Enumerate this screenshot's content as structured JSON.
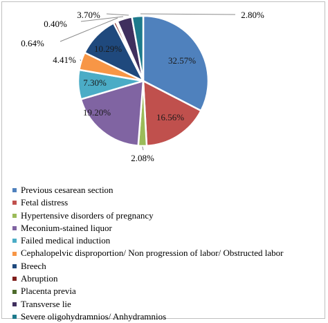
{
  "chart_data": {
    "type": "pie",
    "title": "",
    "slices": [
      {
        "name": "Previous cesarean section",
        "value": 32.57,
        "label": "32.57%",
        "color": "#4f81bd"
      },
      {
        "name": "Fetal distress",
        "value": 16.56,
        "label": "16.56%",
        "color": "#c0504d"
      },
      {
        "name": "Hypertensive disorders of pregnancy",
        "value": 2.08,
        "label": "2.08%",
        "color": "#9bbb59"
      },
      {
        "name": "Meconium-stained liquor",
        "value": 19.2,
        "label": "19.20%",
        "color": "#8064a2"
      },
      {
        "name": "Failed medical induction",
        "value": 7.3,
        "label": "7.30%",
        "color": "#4bacc6"
      },
      {
        "name": "Cephalopelvic disproportion/ Non progression of labor/ Obstructed labor",
        "value": 4.41,
        "label": "4.41%",
        "color": "#f79646"
      },
      {
        "name": "Breech",
        "value": 10.29,
        "label": "10.29%",
        "color": "#1f497d"
      },
      {
        "name": "Abruption",
        "value": 0.64,
        "label": "0.64%",
        "color": "#7f1f1c"
      },
      {
        "name": "Placenta previa",
        "value": 0.4,
        "label": "0.40%",
        "color": "#4e6b2b"
      },
      {
        "name": "Transverse lie",
        "value": 3.7,
        "label": "3.70%",
        "color": "#3f2f5e"
      },
      {
        "name": "Severe oligohydramnios/ Anhydramnios",
        "value": 2.8,
        "label": "2.80%",
        "color": "#1d7a8c"
      }
    ],
    "legend_position": "bottom"
  }
}
